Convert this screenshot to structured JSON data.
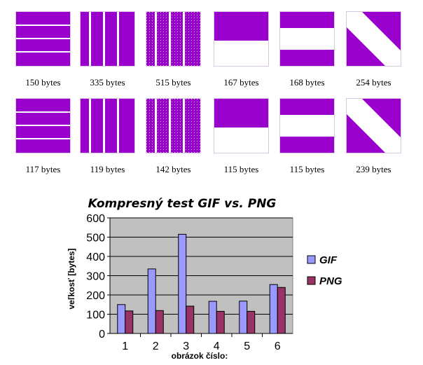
{
  "colors": {
    "tile": "#9900cc",
    "gif": "#9999ff",
    "png": "#993366",
    "plot_bg": "#c0c0c0"
  },
  "tiles": {
    "gif_row": [
      {
        "pattern": "horizontal-lines",
        "label": "150 bytes"
      },
      {
        "pattern": "vertical-lines",
        "label": "335 bytes"
      },
      {
        "pattern": "dotted-vertical",
        "label": "515 bytes"
      },
      {
        "pattern": "top-block",
        "label": "167 bytes"
      },
      {
        "pattern": "horizontal-band",
        "label": "168 bytes"
      },
      {
        "pattern": "diagonal-stripe",
        "label": "254 bytes"
      }
    ],
    "png_row": [
      {
        "pattern": "horizontal-lines",
        "label": "117 bytes"
      },
      {
        "pattern": "vertical-lines",
        "label": "119 bytes"
      },
      {
        "pattern": "dotted-vertical",
        "label": "142 bytes"
      },
      {
        "pattern": "top-block",
        "label": "115 bytes"
      },
      {
        "pattern": "horizontal-band",
        "label": "115 bytes"
      },
      {
        "pattern": "diagonal-stripe",
        "label": "239 bytes"
      }
    ]
  },
  "chart_data": {
    "type": "bar",
    "title": "Kompresný test GIF vs. PNG",
    "xlabel": "obrázok číslo:",
    "ylabel": "veľkosť [bytes]",
    "categories": [
      "1",
      "2",
      "3",
      "4",
      "5",
      "6"
    ],
    "series": [
      {
        "name": "GIF",
        "values": [
          150,
          335,
          515,
          167,
          168,
          254
        ]
      },
      {
        "name": "PNG",
        "values": [
          117,
          119,
          142,
          115,
          115,
          239
        ]
      }
    ],
    "ylim": [
      0,
      600
    ],
    "yticks": [
      "0",
      "100",
      "200",
      "300",
      "400",
      "500",
      "600"
    ],
    "grid": true,
    "legend": "right"
  }
}
